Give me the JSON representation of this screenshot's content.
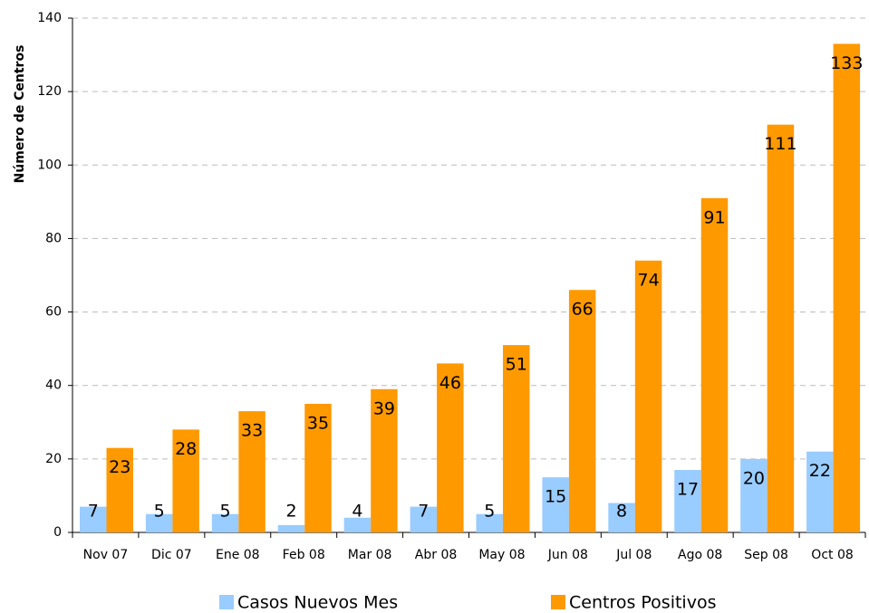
{
  "chart_data": {
    "type": "bar",
    "y_label": "Número de Centros",
    "categories": [
      "Nov 07",
      "Dic 07",
      "Ene 08",
      "Feb 08",
      "Mar 08",
      "Abr 08",
      "May 08",
      "Jun 08",
      "Jul 08",
      "Ago 08",
      "Sep 08",
      "Oct 08"
    ],
    "series": [
      {
        "name": "Casos Nuevos Mes",
        "color": "#99ccff",
        "values": [
          7,
          5,
          5,
          2,
          4,
          7,
          5,
          15,
          8,
          17,
          20,
          22
        ]
      },
      {
        "name": "Centros Positivos",
        "color": "#ff9900",
        "values": [
          23,
          28,
          33,
          35,
          39,
          46,
          51,
          66,
          74,
          91,
          111,
          133
        ]
      }
    ],
    "ylim": [
      0,
      140
    ],
    "yticks": [
      0,
      20,
      40,
      60,
      80,
      100,
      120,
      140
    ],
    "grid": true,
    "legend": "bottom"
  }
}
